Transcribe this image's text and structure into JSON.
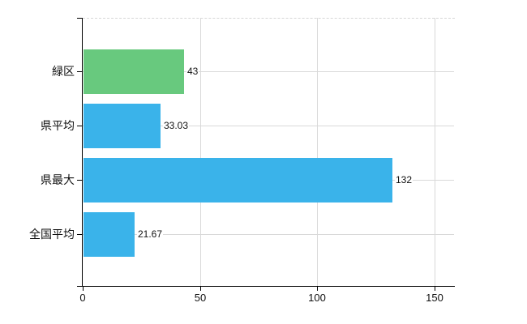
{
  "colors": {
    "background": "#ffffff",
    "axis": "#000000",
    "gridline": "#d9d9d9",
    "text": "#111111",
    "green_bar": "#68c97e",
    "blue_bar": "#3ab3ea"
  },
  "chart_data": {
    "type": "bar",
    "orientation": "horizontal",
    "title": "",
    "xlabel": "",
    "ylabel": "",
    "legend": "none",
    "grid": true,
    "categories": [
      "緑区",
      "県平均",
      "県最大",
      "全国平均"
    ],
    "values": [
      43,
      33.03,
      132,
      21.67
    ],
    "value_labels": [
      "43",
      "33.03",
      "132",
      "21.67"
    ],
    "bar_colors": [
      "#68c97e",
      "#3ab3ea",
      "#3ab3ea",
      "#3ab3ea"
    ],
    "x_ticks": [
      0,
      50,
      100,
      150
    ],
    "x_tick_labels": [
      "0",
      "50",
      "100",
      "150"
    ],
    "xlim": [
      0,
      158.5
    ]
  }
}
